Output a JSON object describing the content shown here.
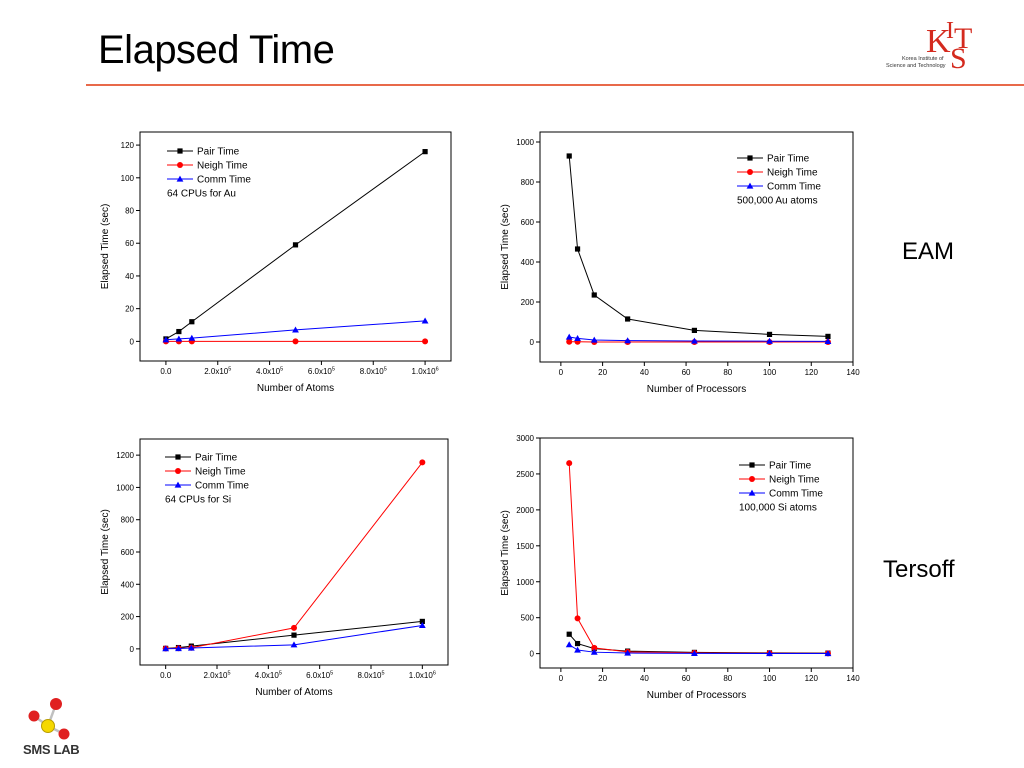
{
  "page": {
    "title": "Elapsed Time",
    "side_labels": [
      "EAM",
      "Tersoff"
    ],
    "logo_text": [
      "Korea Institute of",
      "Science and Technology"
    ],
    "footer_logo": "SMS LAB"
  },
  "colors": {
    "pair": "#000000",
    "neigh": "#ff0000",
    "comm": "#0000ff",
    "accent_rule": "#e8694a",
    "kist_red": "#d42a1e"
  },
  "chart_data": [
    {
      "type": "line",
      "xlabel": "Number of Atoms",
      "ylabel": "Elapsed Time (sec)",
      "xlim": [
        -100000,
        1100000
      ],
      "ylim": [
        -12,
        128
      ],
      "xticks": [
        {
          "v": 0,
          "t": "0.0"
        },
        {
          "v": 200000,
          "t": "2.0x10",
          "e": "5"
        },
        {
          "v": 400000,
          "t": "4.0x10",
          "e": "5"
        },
        {
          "v": 600000,
          "t": "6.0x10",
          "e": "5"
        },
        {
          "v": 800000,
          "t": "8.0x10",
          "e": "5"
        },
        {
          "v": 1000000,
          "t": "1.0x10",
          "e": "6"
        }
      ],
      "yticks": [
        0,
        20,
        40,
        60,
        80,
        100,
        120
      ],
      "legend_note": "64 CPUs for Au",
      "series": [
        {
          "name": "Pair Time",
          "marker": "square",
          "x": [
            0,
            50000,
            100000,
            500000,
            1000000
          ],
          "y": [
            1.5,
            6,
            12,
            59,
            116
          ]
        },
        {
          "name": "Neigh Time",
          "marker": "circle",
          "x": [
            0,
            50000,
            100000,
            500000,
            1000000
          ],
          "y": [
            0,
            0,
            0,
            0,
            0
          ]
        },
        {
          "name": "Comm Time",
          "marker": "triangle",
          "x": [
            0,
            50000,
            100000,
            500000,
            1000000
          ],
          "y": [
            1,
            1.5,
            2,
            7,
            12.5
          ]
        }
      ]
    },
    {
      "type": "line",
      "xlabel": "Number of Processors",
      "ylabel": "Elapsed Time (sec)",
      "xlim": [
        -10,
        140
      ],
      "ylim": [
        -100,
        1050
      ],
      "xticks": [
        {
          "v": 0,
          "t": "0"
        },
        {
          "v": 20,
          "t": "20"
        },
        {
          "v": 40,
          "t": "40"
        },
        {
          "v": 60,
          "t": "60"
        },
        {
          "v": 80,
          "t": "80"
        },
        {
          "v": 100,
          "t": "100"
        },
        {
          "v": 120,
          "t": "120"
        },
        {
          "v": 140,
          "t": "140"
        }
      ],
      "yticks": [
        0,
        200,
        400,
        600,
        800,
        1000
      ],
      "legend_note": "500,000 Au atoms",
      "series": [
        {
          "name": "Pair Time",
          "marker": "square",
          "x": [
            4,
            8,
            16,
            32,
            64,
            100,
            128
          ],
          "y": [
            930,
            465,
            235,
            115,
            58,
            38,
            28
          ]
        },
        {
          "name": "Neigh Time",
          "marker": "circle",
          "x": [
            4,
            8,
            16,
            32,
            64,
            100,
            128
          ],
          "y": [
            1,
            1,
            0,
            0,
            0,
            0,
            0
          ]
        },
        {
          "name": "Comm Time",
          "marker": "triangle",
          "x": [
            4,
            8,
            16,
            32,
            64,
            100,
            128
          ],
          "y": [
            25,
            18,
            10,
            7,
            5,
            4,
            3
          ]
        }
      ]
    },
    {
      "type": "line",
      "xlabel": "Number of Atoms",
      "ylabel": "Elapsed Time (sec)",
      "xlim": [
        -100000,
        1100000
      ],
      "ylim": [
        -100,
        1300
      ],
      "xticks": [
        {
          "v": 0,
          "t": "0.0"
        },
        {
          "v": 200000,
          "t": "2.0x10",
          "e": "5"
        },
        {
          "v": 400000,
          "t": "4.0x10",
          "e": "5"
        },
        {
          "v": 600000,
          "t": "6.0x10",
          "e": "5"
        },
        {
          "v": 800000,
          "t": "8.0x10",
          "e": "5"
        },
        {
          "v": 1000000,
          "t": "1.0x10",
          "e": "6"
        }
      ],
      "yticks": [
        0,
        200,
        400,
        600,
        800,
        1000,
        1200
      ],
      "legend_note": "64 CPUs for Si",
      "series": [
        {
          "name": "Pair Time",
          "marker": "square",
          "x": [
            0,
            50000,
            100000,
            500000,
            1000000
          ],
          "y": [
            3,
            8,
            17,
            85,
            170
          ]
        },
        {
          "name": "Neigh Time",
          "marker": "circle",
          "x": [
            0,
            50000,
            100000,
            500000,
            1000000
          ],
          "y": [
            2,
            4,
            7,
            130,
            1155
          ]
        },
        {
          "name": "Comm Time",
          "marker": "triangle",
          "x": [
            0,
            50000,
            100000,
            500000,
            1000000
          ],
          "y": [
            1,
            2,
            5,
            25,
            145
          ]
        }
      ]
    },
    {
      "type": "line",
      "xlabel": "Number of Processors",
      "ylabel": "Elapsed Time (sec)",
      "xlim": [
        -10,
        140
      ],
      "ylim": [
        -200,
        3000
      ],
      "xticks": [
        {
          "v": 0,
          "t": "0"
        },
        {
          "v": 20,
          "t": "20"
        },
        {
          "v": 40,
          "t": "40"
        },
        {
          "v": 60,
          "t": "60"
        },
        {
          "v": 80,
          "t": "80"
        },
        {
          "v": 100,
          "t": "100"
        },
        {
          "v": 120,
          "t": "120"
        },
        {
          "v": 140,
          "t": "140"
        }
      ],
      "yticks": [
        0,
        500,
        1000,
        1500,
        2000,
        2500,
        3000
      ],
      "legend_note": "100,000 Si atoms",
      "series": [
        {
          "name": "Pair Time",
          "marker": "square",
          "x": [
            4,
            8,
            16,
            32,
            64,
            100,
            128
          ],
          "y": [
            270,
            140,
            70,
            35,
            17,
            10,
            7
          ]
        },
        {
          "name": "Neigh Time",
          "marker": "circle",
          "x": [
            4,
            8,
            16,
            32,
            64,
            100,
            128
          ],
          "y": [
            2650,
            490,
            80,
            25,
            10,
            5,
            3
          ]
        },
        {
          "name": "Comm Time",
          "marker": "triangle",
          "x": [
            4,
            8,
            16,
            32,
            64,
            100,
            128
          ],
          "y": [
            125,
            50,
            20,
            8,
            4,
            2,
            1
          ]
        }
      ]
    }
  ]
}
